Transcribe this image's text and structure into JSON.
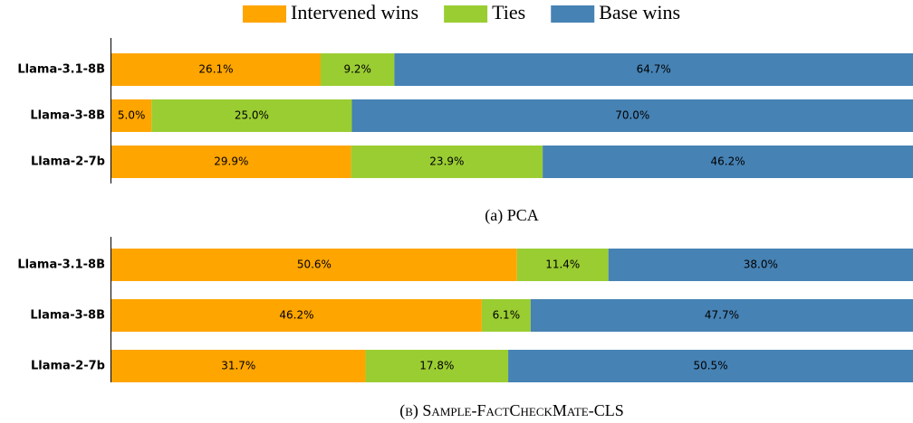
{
  "chart_data": [
    {
      "type": "bar",
      "orientation": "horizontal",
      "stacked": true,
      "caption": "(a) PCA",
      "categories": [
        "Llama-3.1-8B",
        "Llama-3-8B",
        "Llama-2-7b"
      ],
      "xlim": [
        0,
        100
      ],
      "series": [
        {
          "name": "Intervened wins",
          "color": "#ffa500",
          "values": [
            26.1,
            5.0,
            29.9
          ],
          "value_labels": [
            "26.1%",
            "5.0%",
            "29.9%"
          ]
        },
        {
          "name": "Ties",
          "color": "#9acd32",
          "values": [
            9.2,
            25.0,
            23.9
          ],
          "value_labels": [
            "9.2%",
            "25.0%",
            "23.9%"
          ]
        },
        {
          "name": "Base wins",
          "color": "#4682b4",
          "values": [
            64.7,
            70.0,
            46.2
          ],
          "value_labels": [
            "64.7%",
            "70.0%",
            "46.2%"
          ]
        }
      ]
    },
    {
      "type": "bar",
      "orientation": "horizontal",
      "stacked": true,
      "caption": "(b) Sample-FactCheckMate-CLS",
      "categories": [
        "Llama-3.1-8B",
        "Llama-3-8B",
        "Llama-2-7b"
      ],
      "xlim": [
        0,
        100
      ],
      "series": [
        {
          "color": "#ffa500",
          "values": [
            50.6,
            46.2,
            31.7
          ],
          "value_labels": [
            "50.6%",
            "46.2%",
            "31.7%"
          ]
        },
        {
          "color": "#9acd32",
          "values": [
            11.4,
            6.1,
            17.8
          ],
          "value_labels": [
            "11.4%",
            "6.1%",
            "17.8%"
          ]
        },
        {
          "color": "#4682b4",
          "values": [
            38.0,
            47.7,
            50.5
          ],
          "value_labels": [
            "38.0%",
            "47.7%",
            "50.5%"
          ]
        }
      ]
    }
  ]
}
